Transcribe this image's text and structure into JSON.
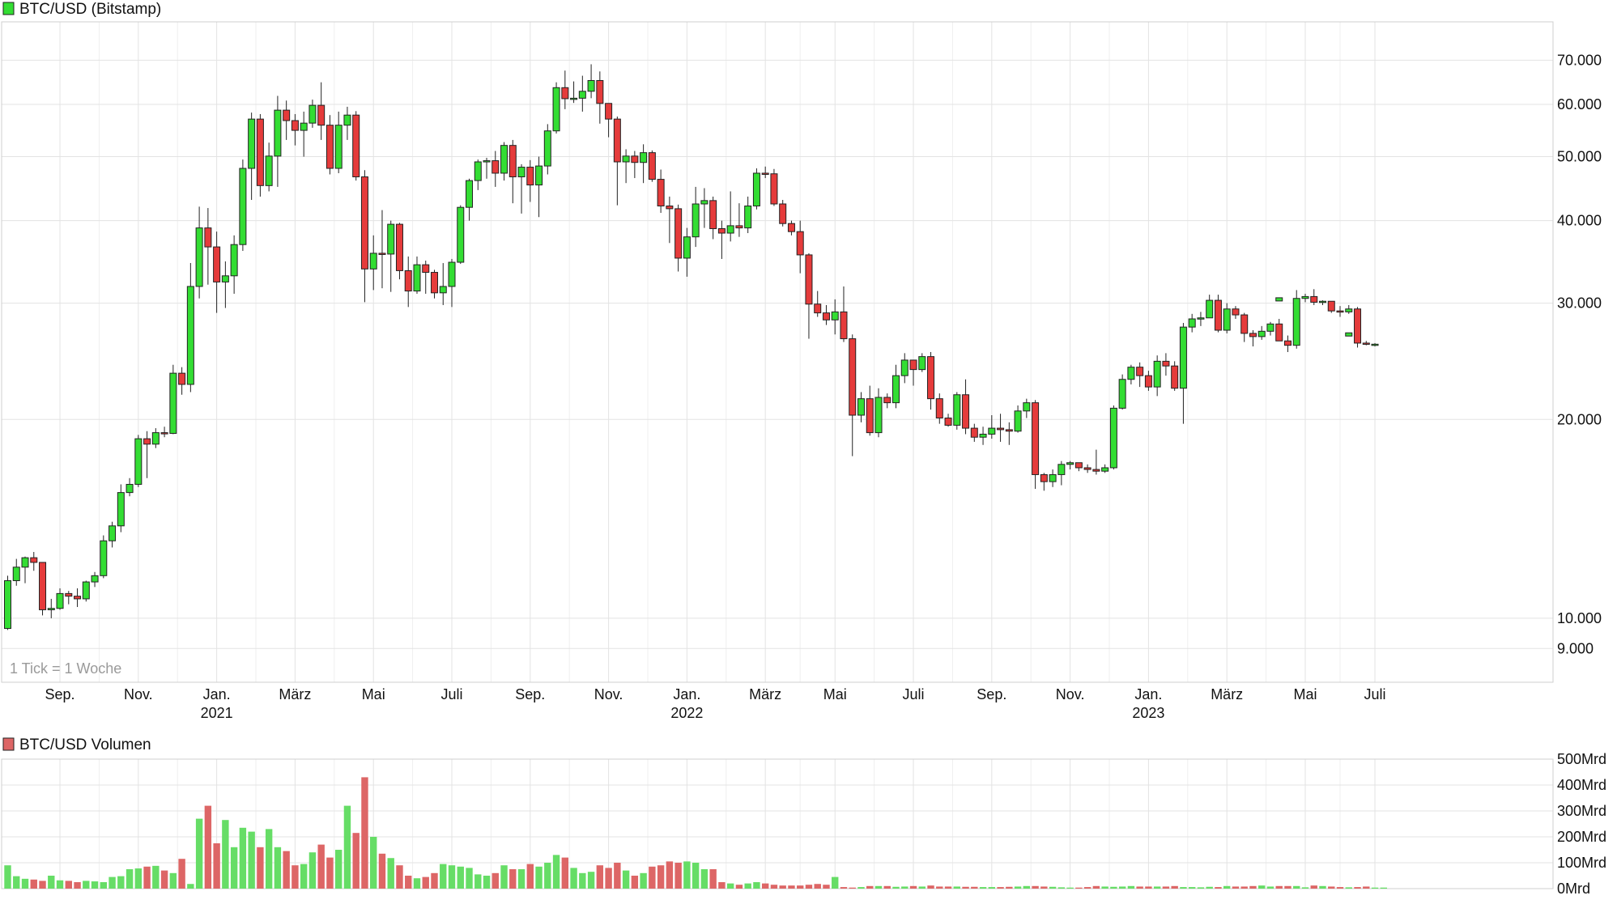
{
  "colors": {
    "up": "#33dd33",
    "down": "#e53b3b",
    "grid": "#e3e3e3",
    "vol_up": "#66dd66",
    "vol_down": "#dd6666"
  },
  "tick_note": "1 Tick = 1 Woche",
  "chart_data": [
    {
      "type": "candlestick",
      "title": "BTC/USD (Bitstamp)",
      "y_scale": "log",
      "ylim": [
        8000,
        80000
      ],
      "y_ticks": [
        {
          "value": 70000,
          "label": "70.000"
        },
        {
          "value": 60000,
          "label": "60.000"
        },
        {
          "value": 50000,
          "label": "50.000"
        },
        {
          "value": 40000,
          "label": "40.000"
        },
        {
          "value": 30000,
          "label": "30.000"
        },
        {
          "value": 20000,
          "label": "20.000"
        },
        {
          "value": 10000,
          "label": "10.000"
        },
        {
          "value": 9000,
          "label": "9.000"
        }
      ],
      "x_ticks": [
        {
          "week": 6,
          "label": "Sep.",
          "year": ""
        },
        {
          "week": 15,
          "label": "Nov.",
          "year": ""
        },
        {
          "week": 24,
          "label": "Jan.",
          "year": "2021"
        },
        {
          "week": 33,
          "label": "März",
          "year": ""
        },
        {
          "week": 42,
          "label": "Mai",
          "year": ""
        },
        {
          "week": 51,
          "label": "Juli",
          "year": ""
        },
        {
          "week": 60,
          "label": "Sep.",
          "year": ""
        },
        {
          "week": 69,
          "label": "Nov.",
          "year": ""
        },
        {
          "week": 78,
          "label": "Jan.",
          "year": "2022"
        },
        {
          "week": 87,
          "label": "März",
          "year": ""
        },
        {
          "week": 95,
          "label": "Mai",
          "year": ""
        },
        {
          "week": 104,
          "label": "Juli",
          "year": ""
        },
        {
          "week": 113,
          "label": "Sep.",
          "year": ""
        },
        {
          "week": 122,
          "label": "Nov.",
          "year": ""
        },
        {
          "week": 131,
          "label": "Jan.",
          "year": "2023"
        },
        {
          "week": 140,
          "label": "März",
          "year": ""
        },
        {
          "week": 149,
          "label": "Mai",
          "year": ""
        },
        {
          "week": 157,
          "label": "Juli",
          "year": ""
        }
      ],
      "candles": [
        [
          9650,
          11400,
          11600,
          9600
        ],
        [
          11400,
          11950,
          12300,
          11200
        ],
        [
          11950,
          12350,
          12400,
          11300
        ],
        [
          12350,
          12150,
          12600,
          11800
        ],
        [
          12150,
          10300,
          12100,
          10100
        ],
        [
          10300,
          10350,
          10700,
          10000
        ],
        [
          10350,
          10900,
          11100,
          10300
        ],
        [
          10900,
          10800,
          11000,
          10500
        ],
        [
          10800,
          10700,
          11100,
          10400
        ],
        [
          10700,
          11350,
          11400,
          10600
        ],
        [
          11350,
          11600,
          11750,
          11150
        ],
        [
          11600,
          13100,
          13350,
          11500
        ],
        [
          13100,
          13800,
          14000,
          12800
        ],
        [
          13800,
          15500,
          15950,
          13500
        ],
        [
          15500,
          15950,
          16300,
          15300
        ],
        [
          15950,
          18700,
          18950,
          15800
        ],
        [
          18700,
          18350,
          19200,
          16300
        ],
        [
          18350,
          19100,
          19400,
          18100
        ],
        [
          19100,
          19050,
          19500,
          18800
        ],
        [
          19050,
          23500,
          24200,
          19000
        ],
        [
          23500,
          22600,
          24000,
          21800
        ],
        [
          22600,
          31800,
          34500,
          22000
        ],
        [
          31800,
          39000,
          42000,
          30500
        ],
        [
          39000,
          36500,
          41800,
          32000
        ],
        [
          36500,
          32300,
          38500,
          29000
        ],
        [
          32300,
          33000,
          34700,
          29500
        ],
        [
          33000,
          36800,
          38000,
          31000
        ],
        [
          36800,
          48000,
          49500,
          36000
        ],
        [
          48000,
          57000,
          58300,
          43000
        ],
        [
          57000,
          45200,
          58000,
          43500
        ],
        [
          45200,
          50100,
          52500,
          44300
        ],
        [
          50100,
          58800,
          61800,
          45000
        ],
        [
          58800,
          56700,
          60800,
          53000
        ],
        [
          56700,
          54800,
          58000,
          52000
        ],
        [
          54800,
          56200,
          58500,
          50000
        ],
        [
          56200,
          59800,
          61000,
          55300
        ],
        [
          59800,
          55800,
          64800,
          53000
        ],
        [
          55800,
          48000,
          57800,
          47000
        ],
        [
          48000,
          55800,
          58500,
          47200
        ],
        [
          55800,
          57800,
          59500,
          53000
        ],
        [
          57800,
          46600,
          58600,
          46000
        ],
        [
          46600,
          33800,
          47700,
          30100
        ],
        [
          33800,
          35700,
          38000,
          31400
        ],
        [
          35700,
          35600,
          41500,
          31600
        ],
        [
          35600,
          39500,
          40000,
          31200
        ],
        [
          39500,
          33600,
          39700,
          32600
        ],
        [
          33600,
          31300,
          35300,
          29600
        ],
        [
          31300,
          34300,
          35300,
          31000
        ],
        [
          34300,
          33400,
          34800,
          31000
        ],
        [
          33400,
          31100,
          33700,
          30500
        ],
        [
          31100,
          31800,
          34500,
          29800
        ],
        [
          31800,
          34600,
          35000,
          29600
        ],
        [
          34600,
          41900,
          42200,
          34400
        ],
        [
          41900,
          46000,
          46300,
          40000
        ],
        [
          46000,
          49100,
          49500,
          44500
        ],
        [
          49100,
          49300,
          49800,
          46300
        ],
        [
          49300,
          47200,
          51000,
          45000
        ],
        [
          47200,
          52000,
          52600,
          46000
        ],
        [
          52000,
          46600,
          53000,
          42500
        ],
        [
          46600,
          48200,
          48700,
          41000
        ],
        [
          48200,
          45300,
          49400,
          42700
        ],
        [
          45300,
          48400,
          50000,
          40500
        ],
        [
          48400,
          54700,
          56000,
          47000
        ],
        [
          54700,
          63600,
          64800,
          54200
        ],
        [
          63600,
          61200,
          67500,
          59000
        ],
        [
          61200,
          61300,
          65000,
          60300
        ],
        [
          61300,
          62800,
          66300,
          58500
        ],
        [
          62800,
          65200,
          69000,
          61300
        ],
        [
          65200,
          60200,
          67300,
          56100
        ],
        [
          60200,
          57000,
          60000,
          53500
        ],
        [
          57000,
          49100,
          57500,
          42200
        ],
        [
          49100,
          50100,
          51300,
          45600
        ],
        [
          50100,
          49000,
          51000,
          46400
        ],
        [
          49000,
          50700,
          52200,
          45600
        ],
        [
          50700,
          46200,
          51100,
          45800
        ],
        [
          46200,
          42100,
          47800,
          41100
        ],
        [
          42100,
          41700,
          43500,
          37000
        ],
        [
          41700,
          35100,
          42300,
          33500
        ],
        [
          35100,
          37800,
          39000,
          32900
        ],
        [
          37800,
          42400,
          45000,
          36500
        ],
        [
          42400,
          42900,
          44800,
          39000
        ],
        [
          42900,
          38900,
          43500,
          37500
        ],
        [
          38900,
          38300,
          40000,
          35000
        ],
        [
          38300,
          39300,
          44300,
          37200
        ],
        [
          39300,
          39000,
          42500,
          37800
        ],
        [
          39000,
          42100,
          43500,
          38300
        ],
        [
          42100,
          47200,
          48000,
          41600
        ],
        [
          47200,
          47100,
          48300,
          46400
        ],
        [
          47100,
          42400,
          47900,
          42100
        ],
        [
          42400,
          39600,
          43000,
          39200
        ],
        [
          39600,
          38500,
          40000,
          38000
        ],
        [
          38500,
          35500,
          40000,
          33300
        ],
        [
          35500,
          29900,
          35700,
          26500
        ],
        [
          29900,
          29000,
          31300,
          28600
        ],
        [
          29000,
          28300,
          29800,
          27800
        ],
        [
          28300,
          29100,
          30400,
          26900
        ],
        [
          29100,
          26500,
          31800,
          26200
        ],
        [
          26500,
          20300,
          26900,
          17600
        ],
        [
          20300,
          21500,
          22000,
          19800
        ],
        [
          21500,
          19100,
          22500,
          18900
        ],
        [
          19100,
          21600,
          22300,
          18800
        ],
        [
          21600,
          21200,
          21900,
          20800
        ],
        [
          21200,
          23300,
          24200,
          20800
        ],
        [
          23300,
          24600,
          25200,
          22700
        ],
        [
          24600,
          23800,
          24500,
          22500
        ],
        [
          23800,
          24900,
          25200,
          23600
        ],
        [
          24900,
          21500,
          25300,
          20700
        ],
        [
          21500,
          20100,
          21900,
          19700
        ],
        [
          20100,
          19600,
          20400,
          19500
        ],
        [
          19600,
          21800,
          22000,
          19300
        ],
        [
          21800,
          19400,
          23000,
          19000
        ],
        [
          19400,
          18800,
          19700,
          18500
        ],
        [
          18800,
          19000,
          19500,
          18300
        ],
        [
          19000,
          19400,
          20300,
          18700
        ],
        [
          19400,
          19300,
          20400,
          18500
        ],
        [
          19300,
          19200,
          19800,
          18300
        ],
        [
          19200,
          20600,
          21000,
          19100
        ],
        [
          20600,
          21200,
          21500,
          20100
        ],
        [
          21200,
          16500,
          21400,
          15700
        ],
        [
          16500,
          16100,
          16600,
          15600
        ],
        [
          16100,
          16500,
          16800,
          15800
        ],
        [
          16500,
          17100,
          17300,
          15900
        ],
        [
          17100,
          17200,
          17300,
          16800
        ],
        [
          17200,
          16900,
          17200,
          16700
        ],
        [
          16900,
          16800,
          17100,
          16600
        ],
        [
          16800,
          16700,
          18000,
          16500
        ],
        [
          16700,
          16900,
          17100,
          16600
        ],
        [
          16900,
          20800,
          21000,
          16800
        ],
        [
          20800,
          23000,
          23400,
          20700
        ],
        [
          23000,
          24000,
          24200,
          22600
        ],
        [
          24000,
          23300,
          24400,
          22400
        ],
        [
          23300,
          22400,
          23700,
          22100
        ],
        [
          22400,
          24500,
          25000,
          21700
        ],
        [
          24500,
          24100,
          25200,
          23300
        ],
        [
          24100,
          22300,
          24500,
          22100
        ],
        [
          22300,
          27600,
          28000,
          19700
        ],
        [
          27600,
          28400,
          28900,
          27100
        ],
        [
          28400,
          28500,
          29100,
          27700
        ],
        [
          28500,
          30300,
          30900,
          29800
        ],
        [
          30300,
          27300,
          30900,
          27100
        ],
        [
          27300,
          29400,
          30000,
          27000
        ],
        [
          29400,
          28800,
          29700,
          28400
        ],
        [
          28800,
          27000,
          29000,
          26200
        ],
        [
          27000,
          26700,
          27300,
          25800
        ],
        [
          26700,
          27200,
          27700,
          26400
        ],
        [
          27200,
          27900,
          28100,
          26800
        ],
        [
          27900,
          26300,
          28400,
          26300
        ],
        [
          26300,
          25900,
          26800,
          25300
        ],
        [
          25900,
          30500,
          31400,
          25600
        ],
        [
          30500,
          30700,
          31000,
          30100
        ],
        [
          30700,
          30100,
          31500,
          29800
        ],
        [
          30100,
          30200,
          30300,
          29800
        ],
        [
          30200,
          29200,
          29800,
          29000
        ],
        [
          29200,
          29100,
          29700,
          28600
        ],
        [
          29100,
          29400,
          29800,
          28900
        ],
        [
          29400,
          26100,
          29600,
          25700
        ],
        [
          26100,
          26000,
          26300,
          25900
        ],
        [
          26000,
          26000,
          26100,
          25800
        ]
      ],
      "markers": [
        {
          "week": 146,
          "value": 30400
        },
        {
          "week": 154,
          "value": 26900
        }
      ]
    },
    {
      "type": "bar",
      "title": "BTC/USD Volumen",
      "ylim": [
        0,
        500
      ],
      "unit": "Mrd",
      "y_ticks": [
        {
          "value": 500,
          "label": "500Mrd"
        },
        {
          "value": 400,
          "label": "400Mrd"
        },
        {
          "value": 300,
          "label": "300Mrd"
        },
        {
          "value": 200,
          "label": "200Mrd"
        },
        {
          "value": 100,
          "label": "100Mrd"
        },
        {
          "value": 0,
          "label": "0Mrd"
        }
      ],
      "values": [
        90,
        48,
        38,
        35,
        30,
        50,
        32,
        30,
        25,
        30,
        28,
        25,
        45,
        48,
        75,
        78,
        85,
        88,
        70,
        60,
        115,
        18,
        270,
        320,
        175,
        265,
        160,
        235,
        220,
        160,
        230,
        160,
        145,
        90,
        95,
        140,
        170,
        120,
        150,
        320,
        215,
        430,
        200,
        135,
        118,
        90,
        50,
        40,
        45,
        60,
        95,
        90,
        85,
        80,
        55,
        50,
        60,
        90,
        75,
        75,
        95,
        85,
        100,
        130,
        120,
        80,
        60,
        65,
        90,
        80,
        100,
        70,
        50,
        60,
        85,
        90,
        105,
        100,
        105,
        100,
        75,
        75,
        25,
        20,
        15,
        20,
        25,
        20,
        15,
        12,
        12,
        12,
        15,
        18,
        15,
        45,
        6,
        4,
        6,
        10,
        10,
        10,
        7,
        8,
        10,
        8,
        12,
        8,
        8,
        8,
        7,
        7,
        6,
        6,
        6,
        7,
        8,
        10,
        10,
        8,
        7,
        5,
        4,
        4,
        6,
        10,
        8,
        7,
        8,
        10,
        8,
        8,
        8,
        8,
        10,
        6,
        6,
        5,
        7,
        6,
        10,
        8,
        8,
        10,
        12,
        8,
        10,
        10,
        10,
        5,
        12,
        10,
        8,
        6,
        5,
        6,
        8,
        4,
        4
      ]
    }
  ]
}
